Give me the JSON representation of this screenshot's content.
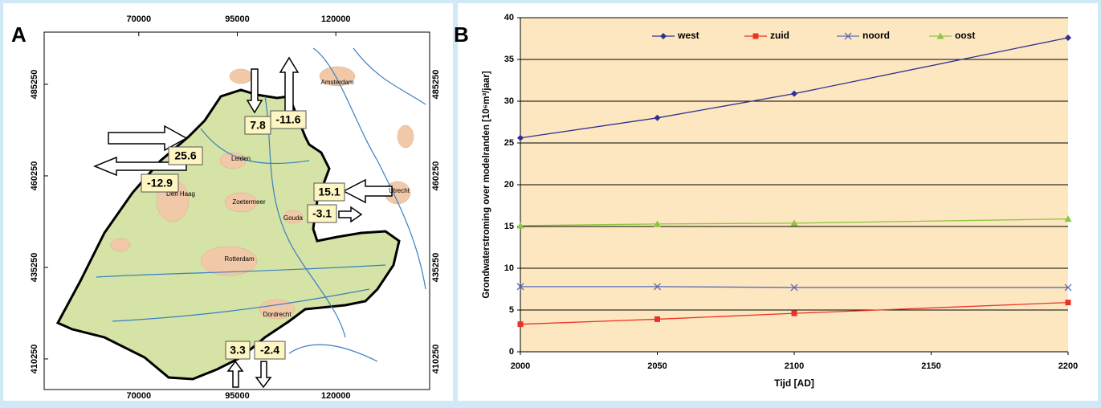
{
  "panel_labels": [
    "A",
    "B"
  ],
  "map": {
    "xlim": [
      46000,
      143800
    ],
    "ylim": [
      401900,
      499500
    ],
    "xticks": [
      70000,
      95000,
      120000
    ],
    "yticks": [
      485250,
      460250,
      435250,
      410250
    ],
    "places": [
      "Amsterdam",
      "Leiden",
      "Den Haag",
      "Zoetermeer",
      "Gouda",
      "Rotterdam",
      "Dordrecht",
      "Utrecht"
    ],
    "flux_labels": [
      7.8,
      -11.6,
      25.6,
      -12.9,
      15.1,
      -3.1,
      3.3,
      -2.4
    ]
  },
  "chart_data": {
    "type": "line",
    "x_label": "Tijd [AD]",
    "y_label": "Grondwaterstroming over modelranden [10⁶m³/jaar]",
    "x": [
      2000,
      2050,
      2100,
      2200
    ],
    "xlim": [
      2000,
      2200
    ],
    "xticks": [
      2000,
      2050,
      2100,
      2150,
      2200
    ],
    "ylim": [
      0,
      40
    ],
    "yticks": [
      0,
      5,
      10,
      15,
      20,
      25,
      30,
      35,
      40
    ],
    "grid": true,
    "legend": "top",
    "series": [
      {
        "name": "west",
        "color": "#2e3192",
        "marker": "diamond",
        "values": [
          25.6,
          28.0,
          30.9,
          37.6
        ]
      },
      {
        "name": "zuid",
        "color": "#ed3124",
        "marker": "square",
        "values": [
          3.3,
          3.9,
          4.6,
          5.9
        ]
      },
      {
        "name": "noord",
        "color": "#5b6bb3",
        "marker": "x",
        "values": [
          7.8,
          7.8,
          7.7,
          7.7
        ]
      },
      {
        "name": "oost",
        "color": "#8dc63f",
        "marker": "triangle",
        "values": [
          15.1,
          15.3,
          15.4,
          15.9
        ]
      }
    ]
  }
}
